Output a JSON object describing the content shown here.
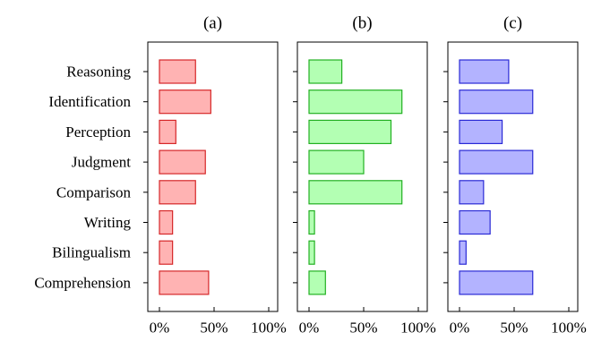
{
  "chart_data": {
    "type": "bar",
    "orientation": "horizontal",
    "categories": [
      "Reasoning",
      "Identification",
      "Perception",
      "Judgment",
      "Comparison",
      "Writing",
      "Bilingualism",
      "Comprehension"
    ],
    "x_ticks": [
      "0%",
      "50%",
      "100%"
    ],
    "xlim": [
      0,
      100
    ],
    "grid": false,
    "panels": [
      {
        "title": "(a)",
        "fill": "#ffb3b3",
        "stroke": "#d62728",
        "values": [
          33,
          47,
          15,
          42,
          33,
          12,
          12,
          45
        ]
      },
      {
        "title": "(b)",
        "fill": "#b3ffb3",
        "stroke": "#22b022",
        "values": [
          30,
          85,
          75,
          50,
          85,
          5,
          5,
          15
        ]
      },
      {
        "title": "(c)",
        "fill": "#b3b3ff",
        "stroke": "#2a2ad6",
        "values": [
          45,
          67,
          39,
          67,
          22,
          28,
          6,
          67
        ]
      }
    ]
  }
}
